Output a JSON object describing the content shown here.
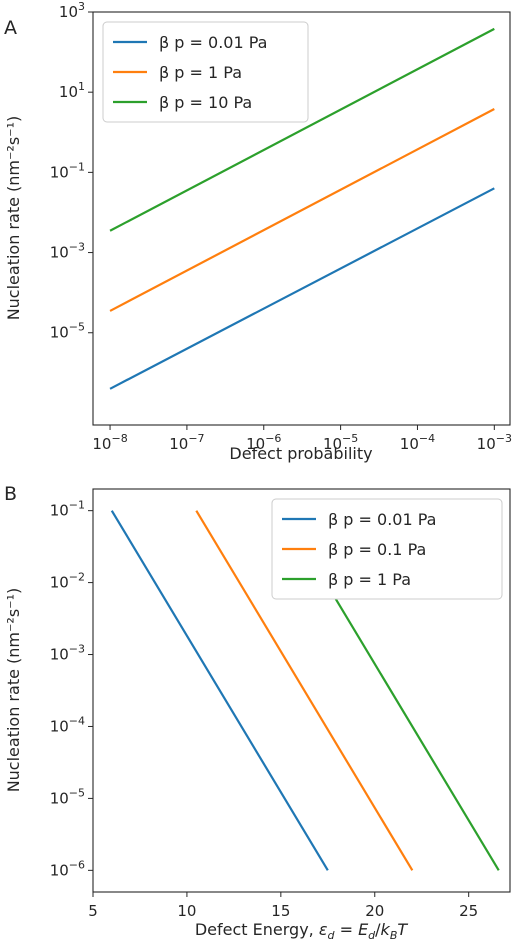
{
  "chart_data": [
    {
      "panel": "A",
      "type": "line",
      "xlabel": "Defect probability",
      "ylabel": "Nucleation rate (nm⁻²s⁻¹)",
      "xscale": "log",
      "yscale": "log",
      "xlim": [
        6e-09,
        0.0016
      ],
      "ylim": [
        5e-08,
        1000
      ],
      "xticks": [
        1e-08,
        1e-07,
        1e-06,
        1e-05,
        0.0001,
        0.001
      ],
      "xtick_labels": [
        {
          "base": "10",
          "exp": "−8"
        },
        {
          "base": "10",
          "exp": "−7"
        },
        {
          "base": "10",
          "exp": "−6"
        },
        {
          "base": "10",
          "exp": "−5"
        },
        {
          "base": "10",
          "exp": "−4"
        },
        {
          "base": "10",
          "exp": "−3"
        }
      ],
      "yticks": [
        1e-05,
        0.001,
        0.1,
        10,
        1000
      ],
      "ytick_labels": [
        {
          "base": "10",
          "exp": "−5"
        },
        {
          "base": "10",
          "exp": "−3"
        },
        {
          "base": "10",
          "exp": "−1"
        },
        {
          "base": "10",
          "exp": "1"
        },
        {
          "base": "10",
          "exp": "3"
        }
      ],
      "grid": false,
      "legend_position": "upper-left",
      "series": [
        {
          "name": "β p = 0.01 Pa",
          "color": "#1f77b4",
          "x": [
            1e-08,
            0.001
          ],
          "y": [
            4e-07,
            0.04
          ]
        },
        {
          "name": "β p = 1 Pa",
          "color": "#ff7f0e",
          "x": [
            1e-08,
            0.001
          ],
          "y": [
            3.5e-05,
            3.8
          ]
        },
        {
          "name": "β p = 10 Pa",
          "color": "#2ca02c",
          "x": [
            1e-08,
            0.001
          ],
          "y": [
            0.0035,
            380
          ]
        }
      ]
    },
    {
      "panel": "B",
      "type": "line",
      "xlabel": "Defect Energy, εd = Ed/kBT",
      "xlabel_parts": {
        "prefix": "Defect Energy, ",
        "eps": "ε",
        "eps_sub": "d",
        "eq": " = ",
        "E": "E",
        "E_sub": "d",
        "slash": "/",
        "k": "k",
        "k_sub": "B",
        "T": "T"
      },
      "ylabel": "Nucleation rate (nm⁻²s⁻¹)",
      "xscale": "linear",
      "yscale": "log",
      "xlim": [
        5,
        27.2
      ],
      "ylim": [
        5e-07,
        0.2
      ],
      "xticks": [
        5,
        10,
        15,
        20,
        25
      ],
      "xtick_labels": [
        "5",
        "10",
        "15",
        "20",
        "25"
      ],
      "yticks": [
        1e-06,
        1e-05,
        0.0001,
        0.001,
        0.01,
        0.1
      ],
      "ytick_labels": [
        {
          "base": "10",
          "exp": "−6"
        },
        {
          "base": "10",
          "exp": "−5"
        },
        {
          "base": "10",
          "exp": "−4"
        },
        {
          "base": "10",
          "exp": "−3"
        },
        {
          "base": "10",
          "exp": "−2"
        },
        {
          "base": "10",
          "exp": "−1"
        }
      ],
      "grid": false,
      "legend_position": "upper-right",
      "series": [
        {
          "name": "β p = 0.01 Pa",
          "color": "#1f77b4",
          "x": [
            6.0,
            17.5
          ],
          "y": [
            0.1,
            1e-06
          ]
        },
        {
          "name": "β p = 0.1 Pa",
          "color": "#ff7f0e",
          "x": [
            10.5,
            22.0
          ],
          "y": [
            0.1,
            1e-06
          ]
        },
        {
          "name": "β p = 1 Pa",
          "color": "#2ca02c",
          "x": [
            15.1,
            26.6
          ],
          "y": [
            0.1,
            1e-06
          ]
        }
      ]
    }
  ]
}
